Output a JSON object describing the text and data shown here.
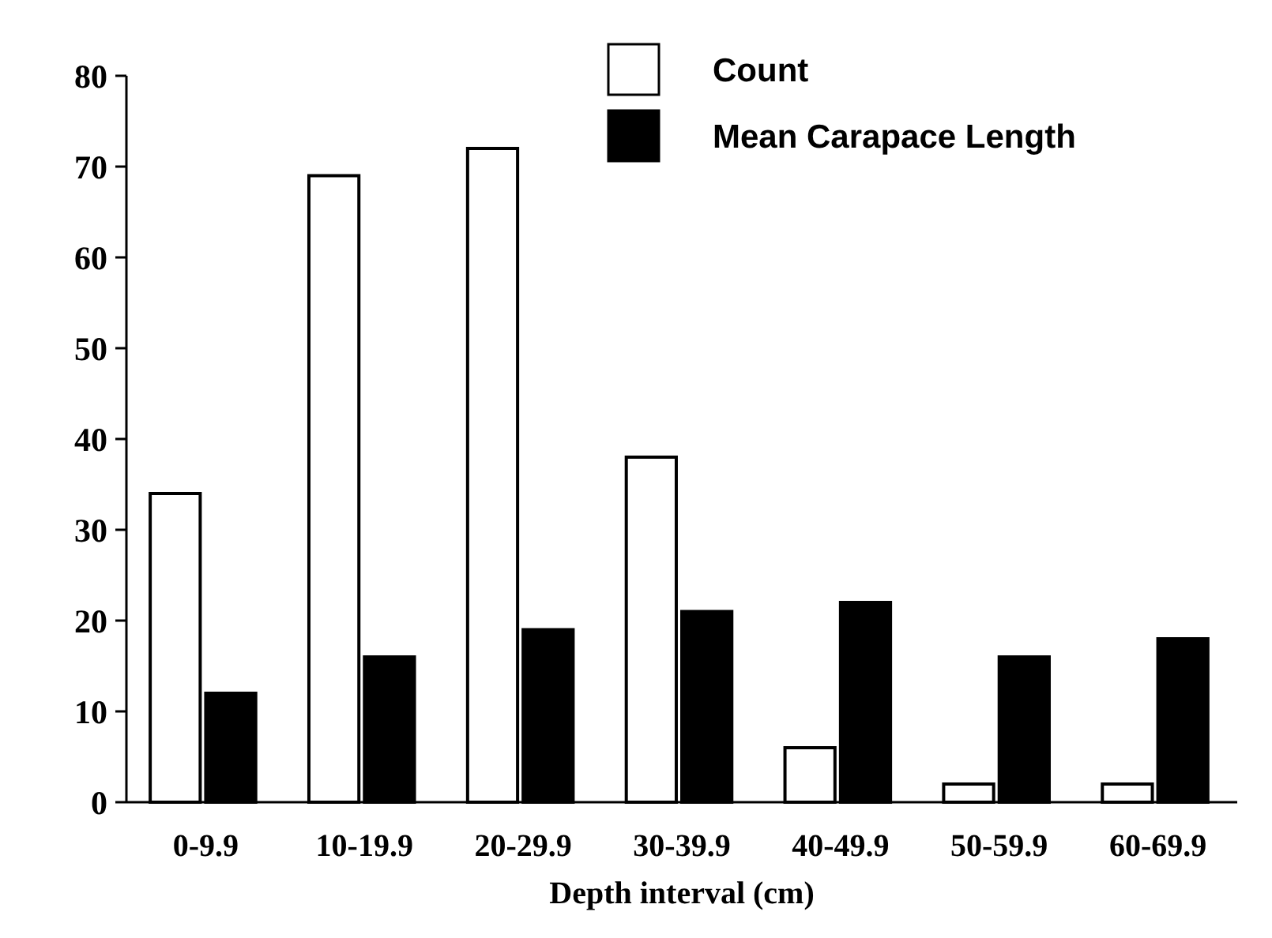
{
  "chart_data": {
    "type": "bar",
    "xlabel": "Depth interval (cm)",
    "categories": [
      "0-9.9",
      "10-19.9",
      "20-29.9",
      "30-39.9",
      "40-49.9",
      "50-59.9",
      "60-69.9"
    ],
    "series": [
      {
        "name": "Count",
        "color": "#ffffff",
        "values": [
          34,
          69,
          72,
          38,
          6,
          2,
          2
        ]
      },
      {
        "name": "Mean Carapace Length",
        "color": "#000000",
        "values": [
          12,
          16,
          19,
          21,
          22,
          16,
          18
        ]
      }
    ],
    "ylim": [
      0,
      80
    ],
    "yticks": [
      0,
      10,
      20,
      30,
      40,
      50,
      60,
      70,
      80
    ],
    "legend": "top right"
  }
}
